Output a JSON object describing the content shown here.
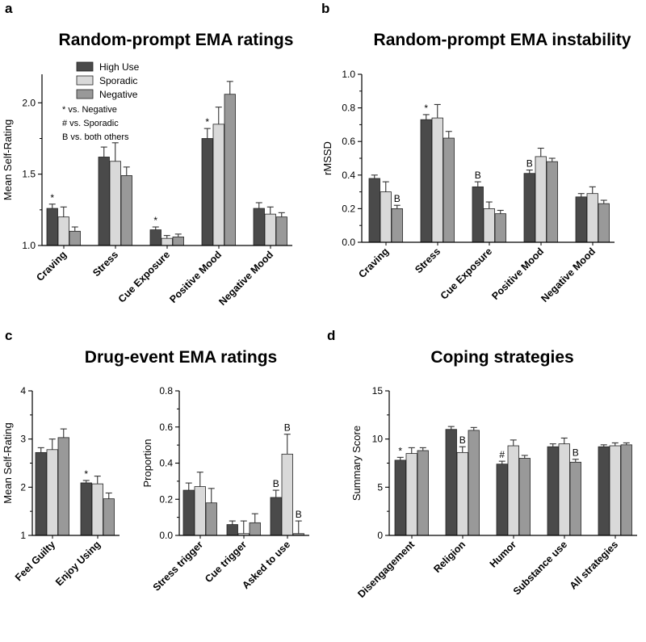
{
  "colors": {
    "high_use": "#4a4a4a",
    "sporadic": "#d9d9d9",
    "negative": "#999999"
  },
  "legend": {
    "items": [
      "High Use",
      "Sporadic",
      "Negative"
    ]
  },
  "annotation": {
    "lines": [
      "* vs. Negative",
      "# vs. Sporadic",
      "B   vs. both others"
    ]
  },
  "chart_data": [
    {
      "panel": "a",
      "type": "bar",
      "title": "Random-prompt EMA ratings",
      "ylabel": "Mean Self-Rating",
      "ylim": [
        1.0,
        2.2
      ],
      "yticks": [
        1.0,
        1.5,
        2.0
      ],
      "ytick_labels": [
        "1.0",
        "1.5",
        "2.0"
      ],
      "categories": [
        "Craving",
        "Stress",
        "Cue Exposure",
        "Positive Mood",
        "Negative Mood"
      ],
      "series": [
        {
          "name": "High Use",
          "values": [
            1.26,
            1.62,
            1.11,
            1.75,
            1.26
          ],
          "errors": [
            0.03,
            0.07,
            0.02,
            0.07,
            0.04
          ]
        },
        {
          "name": "Sporadic",
          "values": [
            1.2,
            1.59,
            1.05,
            1.85,
            1.22
          ],
          "errors": [
            0.07,
            0.13,
            0.02,
            0.12,
            0.05
          ]
        },
        {
          "name": "Negative",
          "values": [
            1.1,
            1.49,
            1.06,
            2.06,
            1.2
          ],
          "errors": [
            0.03,
            0.06,
            0.02,
            0.09,
            0.03
          ]
        }
      ],
      "markers": [
        {
          "category": "Craving",
          "series": "High Use",
          "text": "*"
        },
        {
          "category": "Cue Exposure",
          "series": "High Use",
          "text": "*"
        },
        {
          "category": "Positive Mood",
          "series": "High Use",
          "text": "*"
        }
      ]
    },
    {
      "panel": "b",
      "type": "bar",
      "title": "Random-prompt EMA instability",
      "ylabel": "rMSSD",
      "ylim": [
        0.0,
        1.0
      ],
      "yticks": [
        0.0,
        0.2,
        0.4,
        0.6,
        0.8,
        1.0
      ],
      "ytick_labels": [
        "0.0",
        "0.2",
        "0.4",
        "0.6",
        "0.8",
        "1.0"
      ],
      "categories": [
        "Craving",
        "Stress",
        "Cue Exposure",
        "Positive Mood",
        "Negative Mood"
      ],
      "series": [
        {
          "name": "High Use",
          "values": [
            0.38,
            0.73,
            0.33,
            0.41,
            0.27
          ],
          "errors": [
            0.02,
            0.03,
            0.03,
            0.02,
            0.02
          ]
        },
        {
          "name": "Sporadic",
          "values": [
            0.3,
            0.74,
            0.2,
            0.51,
            0.29
          ],
          "errors": [
            0.06,
            0.08,
            0.04,
            0.05,
            0.04
          ]
        },
        {
          "name": "Negative",
          "values": [
            0.2,
            0.62,
            0.17,
            0.48,
            0.23
          ],
          "errors": [
            0.02,
            0.04,
            0.02,
            0.02,
            0.02
          ]
        }
      ],
      "markers": [
        {
          "category": "Craving",
          "series": "Negative",
          "text": "B"
        },
        {
          "category": "Stress",
          "series": "High Use",
          "text": "*"
        },
        {
          "category": "Cue Exposure",
          "series": "High Use",
          "text": "B"
        },
        {
          "category": "Positive Mood",
          "series": "High Use",
          "text": "B"
        }
      ]
    },
    {
      "panel": "c",
      "type": "bar",
      "title": "Drug-event EMA ratings",
      "ylabel": "Mean Self-Rating",
      "ylim": [
        1,
        4
      ],
      "yticks": [
        1,
        2,
        3,
        4
      ],
      "ytick_labels": [
        "1",
        "2",
        "3",
        "4"
      ],
      "categories": [
        "Feel Guilty",
        "Enjoy Using"
      ],
      "series": [
        {
          "name": "High Use",
          "values": [
            2.72,
            2.09
          ],
          "errors": [
            0.1,
            0.05
          ]
        },
        {
          "name": "Sporadic",
          "values": [
            2.78,
            2.07
          ],
          "errors": [
            0.22,
            0.16
          ]
        },
        {
          "name": "Negative",
          "values": [
            3.03,
            1.76
          ],
          "errors": [
            0.18,
            0.12
          ]
        }
      ],
      "markers": [
        {
          "category": "Enjoy Using",
          "series": "High Use",
          "text": "*"
        }
      ]
    },
    {
      "panel": "c2",
      "type": "bar",
      "title": "",
      "ylabel": "Proportion",
      "ylim": [
        0.0,
        0.8
      ],
      "yticks": [
        0.0,
        0.2,
        0.4,
        0.6,
        0.8
      ],
      "ytick_labels": [
        "0.0",
        "0.2",
        "0.4",
        "0.6",
        "0.8"
      ],
      "categories": [
        "Stress trigger",
        "Cue trigger",
        "Asked to use"
      ],
      "series": [
        {
          "name": "High Use",
          "values": [
            0.25,
            0.06,
            0.21
          ],
          "errors": [
            0.04,
            0.02,
            0.04
          ]
        },
        {
          "name": "Sporadic",
          "values": [
            0.27,
            0.01,
            0.45
          ],
          "errors": [
            0.08,
            0.07,
            0.11
          ]
        },
        {
          "name": "Negative",
          "values": [
            0.18,
            0.07,
            0.01
          ],
          "errors": [
            0.08,
            0.05,
            0.07
          ]
        }
      ],
      "markers": [
        {
          "category": "Asked to use",
          "series": "High Use",
          "text": "B"
        },
        {
          "category": "Asked to use",
          "series": "Sporadic",
          "text": "B"
        },
        {
          "category": "Asked to use",
          "series": "Negative",
          "text": "B"
        }
      ]
    },
    {
      "panel": "d",
      "type": "bar",
      "title": "Coping strategies",
      "ylabel": "Summary Score",
      "ylim": [
        0,
        15
      ],
      "yticks": [
        0,
        5,
        10,
        15
      ],
      "ytick_labels": [
        "0",
        "5",
        "10",
        "15"
      ],
      "categories": [
        "Disengagement",
        "Religion",
        "Humor",
        "Substance use",
        "All strategies"
      ],
      "series": [
        {
          "name": "High Use",
          "values": [
            7.8,
            11.0,
            7.4,
            9.2,
            9.2
          ],
          "errors": [
            0.3,
            0.3,
            0.3,
            0.3,
            0.2
          ]
        },
        {
          "name": "Sporadic",
          "values": [
            8.5,
            8.6,
            9.3,
            9.5,
            9.3
          ],
          "errors": [
            0.6,
            0.6,
            0.6,
            0.6,
            0.3
          ]
        },
        {
          "name": "Negative",
          "values": [
            8.8,
            10.9,
            8.0,
            7.6,
            9.4
          ],
          "errors": [
            0.3,
            0.3,
            0.3,
            0.3,
            0.2
          ]
        }
      ],
      "markers": [
        {
          "category": "Disengagement",
          "series": "High Use",
          "text": "*"
        },
        {
          "category": "Religion",
          "series": "Sporadic",
          "text": "B"
        },
        {
          "category": "Humor",
          "series": "High Use",
          "text": "#"
        },
        {
          "category": "Substance use",
          "series": "Negative",
          "text": "B"
        }
      ]
    }
  ]
}
